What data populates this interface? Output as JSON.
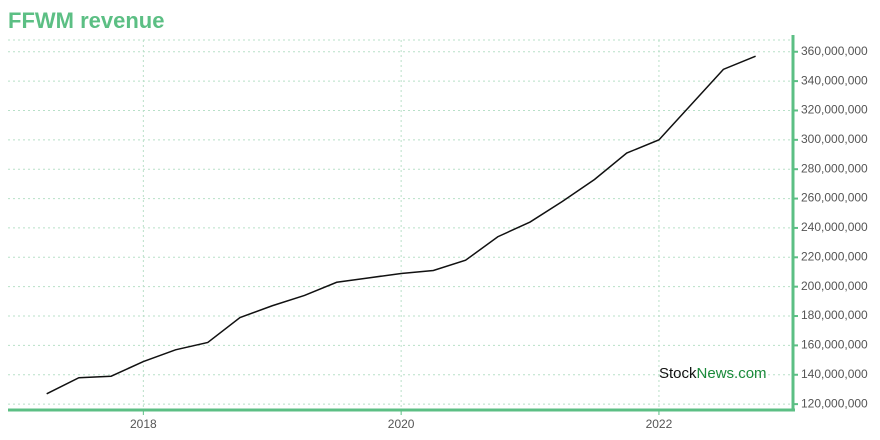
{
  "chart_data": {
    "type": "line",
    "title": "FFWM revenue",
    "x": [
      2017.25,
      2017.5,
      2017.75,
      2018,
      2018.25,
      2018.5,
      2018.75,
      2019,
      2019.25,
      2019.5,
      2019.75,
      2020,
      2020.25,
      2020.5,
      2020.75,
      2021,
      2021.25,
      2021.5,
      2021.75,
      2022,
      2022.25,
      2022.5,
      2022.75
    ],
    "series": [
      {
        "name": "revenue",
        "color": "#111111",
        "values": [
          127000000,
          138000000,
          139000000,
          149000000,
          157000000,
          162000000,
          179000000,
          187000000,
          194000000,
          203000000,
          206000000,
          209000000,
          211000000,
          218000000,
          234000000,
          244000000,
          258000000,
          273000000,
          291000000,
          300000000,
          324000000,
          348000000,
          357000000
        ]
      }
    ],
    "xlim": [
      2016.95,
      2023.04
    ],
    "xticks": [
      2018,
      2020,
      2022
    ],
    "ylim": [
      116000000,
      368000000
    ],
    "yticks": [
      {
        "value": 120000000,
        "label": "120,000,000"
      },
      {
        "value": 140000000,
        "label": "140,000,000"
      },
      {
        "value": 160000000,
        "label": "160,000,000"
      },
      {
        "value": 180000000,
        "label": "180,000,000"
      },
      {
        "value": 200000000,
        "label": "200,000,000"
      },
      {
        "value": 220000000,
        "label": "220,000,000"
      },
      {
        "value": 240000000,
        "label": "240,000,000"
      },
      {
        "value": 260000000,
        "label": "260,000,000"
      },
      {
        "value": 280000000,
        "label": "280,000,000"
      },
      {
        "value": 300000000,
        "label": "300,000,000"
      },
      {
        "value": 320000000,
        "label": "320,000,000"
      },
      {
        "value": 340000000,
        "label": "340,000,000"
      },
      {
        "value": 360000000,
        "label": "360,000,000"
      }
    ],
    "grid": true,
    "axis_color": "#5cbf84",
    "watermark": [
      "Stock",
      "News.com"
    ]
  }
}
